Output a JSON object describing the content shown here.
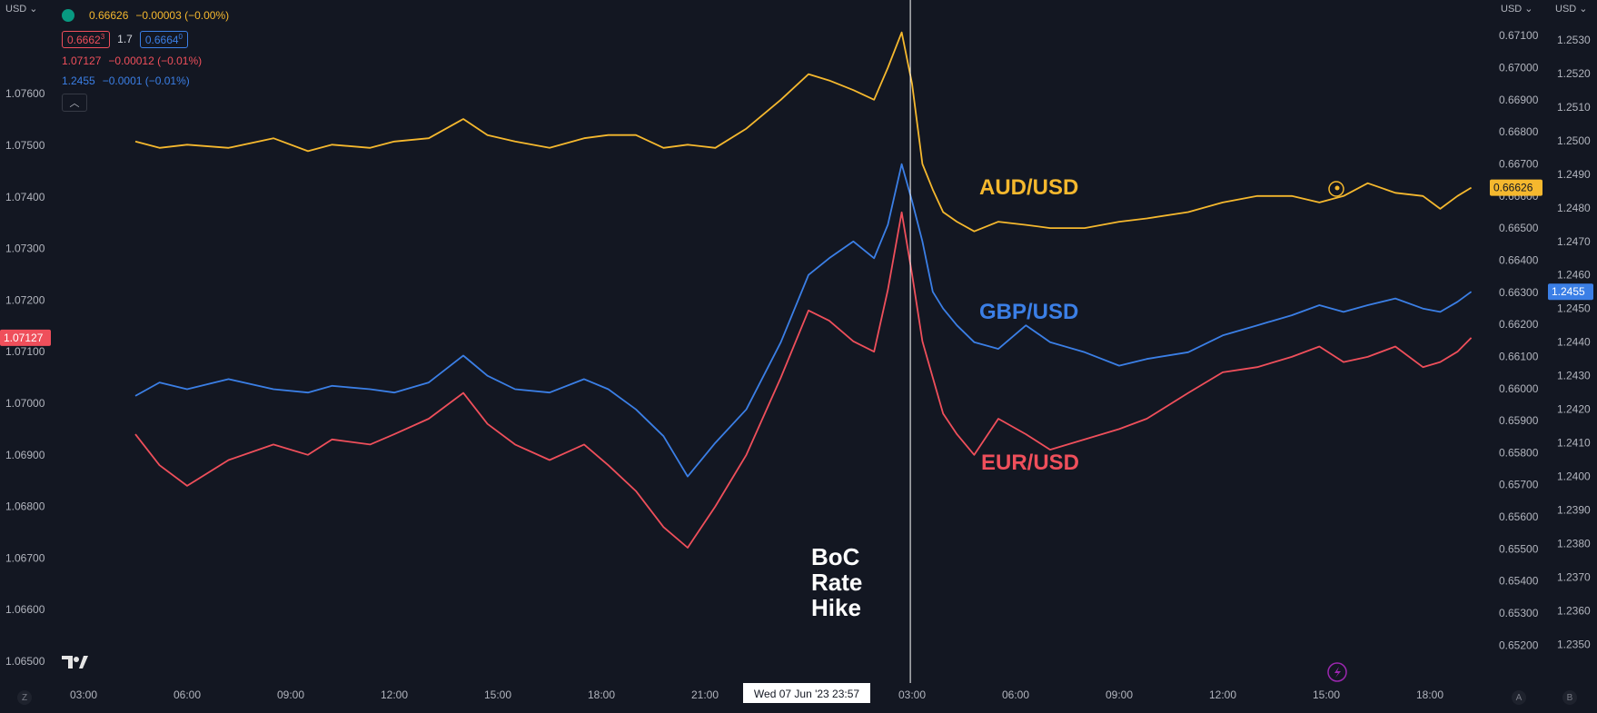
{
  "header": {
    "left_currency": "USD",
    "right_currency_a": "USD",
    "right_currency_b": "USD",
    "aud_line": {
      "price": "0.66626",
      "change": "−0.00003 (−0.00%)"
    },
    "bid": "0.6662",
    "bid_sup": "3",
    "spread": "1.7",
    "ask": "0.6664",
    "ask_sup": "0",
    "eur_line": {
      "price": "1.07127",
      "change": "−0.00012 (−0.01%)"
    },
    "gbp_line": {
      "price": "1.2455",
      "change": "−0.0001 (−0.01%)"
    },
    "collapse_icon": "chevron-up-icon"
  },
  "footer": {
    "left_btn": "Z",
    "right_btn_a": "A",
    "right_btn_b": "B",
    "crosshair_label": "Wed 07 Jun '23   23:57"
  },
  "colors": {
    "aud": "#f5b82e",
    "gbp": "#3b7fe6",
    "eur": "#ef4f5b",
    "bg": "#131722"
  },
  "chart_data": {
    "type": "line",
    "x_ticks": [
      "03:00",
      "06:00",
      "09:00",
      "12:00",
      "15:00",
      "18:00",
      "21:00",
      "03:00",
      "06:00",
      "09:00",
      "12:00",
      "15:00",
      "18:00"
    ],
    "axes": {
      "left": {
        "ticks": [
          "1.07600",
          "1.07500",
          "1.07400",
          "1.07300",
          "1.07200",
          "1.07100",
          "1.07000",
          "1.06900",
          "1.06800",
          "1.06700",
          "1.06600",
          "1.06500"
        ],
        "range": [
          1.065,
          1.0775
        ]
      },
      "mid": {
        "ticks": [
          "0.67100",
          "0.67000",
          "0.66900",
          "0.66800",
          "0.66700",
          "0.66600",
          "0.66500",
          "0.66400",
          "0.66300",
          "0.66200",
          "0.66100",
          "0.66000",
          "0.65900",
          "0.65800",
          "0.65700",
          "0.65600",
          "0.65500",
          "0.65400",
          "0.65300",
          "0.65200"
        ],
        "range": [
          0.6515,
          0.6716
        ]
      },
      "right": {
        "ticks": [
          "1.2530",
          "1.2520",
          "1.2510",
          "1.2500",
          "1.2490",
          "1.2480",
          "1.2470",
          "1.2460",
          "1.2450",
          "1.2440",
          "1.2430",
          "1.2420",
          "1.2410",
          "1.2400",
          "1.2390",
          "1.2380",
          "1.2370",
          "1.2360",
          "1.2350"
        ],
        "range": [
          1.2345,
          1.2537
        ]
      }
    },
    "series": [
      {
        "name": "AUD/USD",
        "axis": "mid",
        "x": [
          1.5,
          2.2,
          3.0,
          4.2,
          5.5,
          6.5,
          7.2,
          8.3,
          9.0,
          10.0,
          11.0,
          11.7,
          12.5,
          13.5,
          14.5,
          15.2,
          16.0,
          16.8,
          17.5,
          18.3,
          19.2,
          20.2,
          21.0,
          21.6,
          22.3,
          22.9,
          23.3,
          23.7,
          24.0,
          24.3,
          24.6,
          24.9,
          25.3,
          25.8,
          26.5,
          27.3,
          28.0,
          29.0,
          30.0,
          30.8,
          32.0,
          33.0,
          34.0,
          35.0,
          35.8,
          36.5,
          37.2,
          38.0,
          38.8,
          39.3,
          39.8,
          40.2
        ],
        "y": [
          0.6677,
          0.6675,
          0.6676,
          0.6675,
          0.6678,
          0.6674,
          0.6676,
          0.6675,
          0.6677,
          0.6678,
          0.6684,
          0.6679,
          0.6677,
          0.6675,
          0.6678,
          0.6679,
          0.6679,
          0.6675,
          0.6676,
          0.6675,
          0.6681,
          0.669,
          0.6698,
          0.6696,
          0.6693,
          0.669,
          0.67,
          0.6711,
          0.6695,
          0.667,
          0.6662,
          0.6655,
          0.6652,
          0.6649,
          0.6652,
          0.6651,
          0.665,
          0.665,
          0.6652,
          0.6653,
          0.6655,
          0.6658,
          0.666,
          0.666,
          0.6658,
          0.666,
          0.6664,
          0.6661,
          0.666,
          0.6656,
          0.666,
          0.66626
        ]
      },
      {
        "name": "GBP/USD",
        "axis": "right",
        "x": [
          1.5,
          2.2,
          3.0,
          4.2,
          5.5,
          6.5,
          7.2,
          8.3,
          9.0,
          10.0,
          11.0,
          11.7,
          12.5,
          13.5,
          14.5,
          15.2,
          16.0,
          16.8,
          17.5,
          18.3,
          19.2,
          20.2,
          21.0,
          21.6,
          22.3,
          22.9,
          23.3,
          23.7,
          24.0,
          24.3,
          24.6,
          24.9,
          25.3,
          25.8,
          26.5,
          27.3,
          28.0,
          29.0,
          30.0,
          30.8,
          32.0,
          33.0,
          34.0,
          35.0,
          35.8,
          36.5,
          37.2,
          38.0,
          38.8,
          39.3,
          39.8,
          40.2
        ],
        "y": [
          1.2424,
          1.2428,
          1.2426,
          1.2429,
          1.2426,
          1.2425,
          1.2427,
          1.2426,
          1.2425,
          1.2428,
          1.2436,
          1.243,
          1.2426,
          1.2425,
          1.2429,
          1.2426,
          1.242,
          1.2412,
          1.24,
          1.241,
          1.242,
          1.244,
          1.246,
          1.2465,
          1.247,
          1.2465,
          1.2475,
          1.2493,
          1.2482,
          1.247,
          1.2455,
          1.245,
          1.2445,
          1.244,
          1.2438,
          1.2445,
          1.244,
          1.2437,
          1.2433,
          1.2435,
          1.2437,
          1.2442,
          1.2445,
          1.2448,
          1.2451,
          1.2449,
          1.2451,
          1.2453,
          1.245,
          1.2449,
          1.2452,
          1.2455
        ]
      },
      {
        "name": "EUR/USD",
        "axis": "left",
        "x": [
          1.5,
          2.2,
          3.0,
          4.2,
          5.5,
          6.5,
          7.2,
          8.3,
          9.0,
          10.0,
          11.0,
          11.7,
          12.5,
          13.5,
          14.5,
          15.2,
          16.0,
          16.8,
          17.5,
          18.3,
          19.2,
          20.2,
          21.0,
          21.6,
          22.3,
          22.9,
          23.3,
          23.7,
          24.0,
          24.3,
          24.6,
          24.9,
          25.3,
          25.8,
          26.5,
          27.3,
          28.0,
          29.0,
          30.0,
          30.8,
          32.0,
          33.0,
          34.0,
          35.0,
          35.8,
          36.5,
          37.2,
          38.0,
          38.8,
          39.3,
          39.8,
          40.2
        ],
        "y": [
          1.0694,
          1.0688,
          1.0684,
          1.0689,
          1.0692,
          1.069,
          1.0693,
          1.0692,
          1.0694,
          1.0697,
          1.0702,
          1.0696,
          1.0692,
          1.0689,
          1.0692,
          1.0688,
          1.0683,
          1.0676,
          1.0672,
          1.068,
          1.069,
          1.0705,
          1.0718,
          1.0716,
          1.0712,
          1.071,
          1.0722,
          1.0737,
          1.0725,
          1.0712,
          1.0705,
          1.0698,
          1.0694,
          1.069,
          1.0697,
          1.0694,
          1.0691,
          1.0693,
          1.0695,
          1.0697,
          1.0702,
          1.0706,
          1.0707,
          1.0709,
          1.0711,
          1.0708,
          1.0709,
          1.0711,
          1.0707,
          1.0708,
          1.071,
          1.07127
        ]
      }
    ],
    "annotations": [
      {
        "text": "AUD/USD",
        "color": "#f5b82e"
      },
      {
        "text": "GBP/USD",
        "color": "#3b7fe6"
      },
      {
        "text": "EUR/USD",
        "color": "#ef4f5b"
      },
      {
        "text": "BoC",
        "color": "#ffffff"
      },
      {
        "text": "Rate",
        "color": "#ffffff"
      },
      {
        "text": "Hike",
        "color": "#ffffff"
      }
    ],
    "price_tags": {
      "left": "1.07127",
      "mid": "0.66626",
      "right": "1.2455"
    },
    "crosshair_x": 23.95
  }
}
